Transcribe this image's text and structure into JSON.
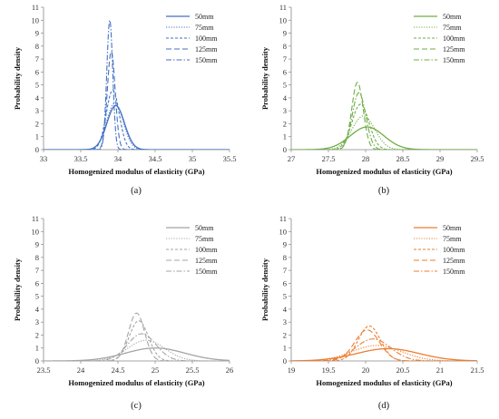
{
  "chart_data": [
    {
      "type": "line",
      "panel_label": "(a)",
      "xlabel": "Homogenized modulus of elasticity (GPa)",
      "ylabel": "Probability density",
      "xlim": [
        33,
        35.5
      ],
      "xticks": [
        33,
        33.5,
        34,
        34.5,
        35,
        35.5
      ],
      "xtick_labels": [
        "33",
        "33.5",
        "34",
        "34.5",
        "35",
        "35.5"
      ],
      "ylim": [
        0,
        11
      ],
      "yticks": [
        0,
        1,
        2,
        3,
        4,
        5,
        6,
        7,
        8,
        9,
        10,
        11
      ],
      "ytick_labels": [
        "0",
        "1",
        "2",
        "3",
        "4",
        "5",
        "6",
        "7",
        "8",
        "9",
        "10",
        "11"
      ],
      "grid": false,
      "legend_position": "top-right",
      "color": "#4472C4",
      "series": [
        {
          "name": "50mm",
          "style": "solid",
          "mean": 33.97,
          "peak": 3.4
        },
        {
          "name": "75mm",
          "style": "dotted",
          "mean": 33.96,
          "peak": 3.6
        },
        {
          "name": "100mm",
          "style": "short-dash",
          "mean": 33.93,
          "peak": 4.6
        },
        {
          "name": "125mm",
          "style": "long-dash",
          "mean": 33.91,
          "peak": 7.6
        },
        {
          "name": "150mm",
          "style": "dash-dot",
          "mean": 33.89,
          "peak": 10.0
        }
      ]
    },
    {
      "type": "line",
      "panel_label": "(b)",
      "xlabel": "Homogenized modulus of elasticity (GPa)",
      "ylabel": "Probability density",
      "xlim": [
        27,
        29.5
      ],
      "xticks": [
        27,
        27.5,
        28,
        28.5,
        29,
        29.5
      ],
      "xtick_labels": [
        "27",
        "27.5",
        "28",
        "28.5",
        "29",
        "29.5"
      ],
      "ylim": [
        0,
        11
      ],
      "yticks": [
        0,
        1,
        2,
        3,
        4,
        5,
        6,
        7,
        8,
        9,
        10,
        11
      ],
      "ytick_labels": [
        "0",
        "1",
        "2",
        "3",
        "4",
        "5",
        "6",
        "7",
        "8",
        "9",
        "10",
        "11"
      ],
      "grid": false,
      "legend_position": "top-right",
      "color": "#70AD47",
      "series": [
        {
          "name": "50mm",
          "style": "solid",
          "mean": 28.02,
          "peak": 1.75
        },
        {
          "name": "75mm",
          "style": "dotted",
          "mean": 27.97,
          "peak": 2.6
        },
        {
          "name": "100mm",
          "style": "short-dash",
          "mean": 27.93,
          "peak": 3.5
        },
        {
          "name": "125mm",
          "style": "long-dash",
          "mean": 27.89,
          "peak": 5.2
        },
        {
          "name": "150mm",
          "style": "dash-dot",
          "mean": 27.91,
          "peak": 4.4
        }
      ]
    },
    {
      "type": "line",
      "panel_label": "(c)",
      "xlabel": "Homogenized modulus of elasticity (GPa)",
      "ylabel": "Probability density",
      "xlim": [
        23.5,
        26
      ],
      "xticks": [
        23.5,
        24,
        24.5,
        25,
        25.5,
        26
      ],
      "xtick_labels": [
        "23.5",
        "24",
        "24.5",
        "25",
        "25.5",
        "26"
      ],
      "ylim": [
        0,
        11
      ],
      "yticks": [
        0,
        1,
        2,
        3,
        4,
        5,
        6,
        7,
        8,
        9,
        10,
        11
      ],
      "ytick_labels": [
        "0",
        "1",
        "2",
        "3",
        "4",
        "5",
        "6",
        "7",
        "8",
        "9",
        "10",
        "11"
      ],
      "grid": false,
      "legend_position": "top-right",
      "color": "#A5A5A5",
      "series": [
        {
          "name": "50mm",
          "style": "solid",
          "mean": 25.0,
          "peak": 1.0
        },
        {
          "name": "75mm",
          "style": "dotted",
          "mean": 24.88,
          "peak": 1.6
        },
        {
          "name": "100mm",
          "style": "short-dash",
          "mean": 24.78,
          "peak": 3.1
        },
        {
          "name": "125mm",
          "style": "long-dash",
          "mean": 24.75,
          "peak": 3.7
        },
        {
          "name": "150mm",
          "style": "dash-dot",
          "mean": 24.82,
          "peak": 2.1
        }
      ]
    },
    {
      "type": "line",
      "panel_label": "(d)",
      "xlabel": "Homogenized modulus of elasticity (GPa)",
      "ylabel": "Probability density",
      "xlim": [
        19,
        21.5
      ],
      "xticks": [
        19,
        19.5,
        20,
        20.5,
        21,
        21.5
      ],
      "xtick_labels": [
        "19",
        "19.5",
        "20",
        "20.5",
        "21",
        "21.5"
      ],
      "ylim": [
        0,
        11
      ],
      "yticks": [
        0,
        1,
        2,
        3,
        4,
        5,
        6,
        7,
        8,
        9,
        10,
        11
      ],
      "ytick_labels": [
        "0",
        "1",
        "2",
        "3",
        "4",
        "5",
        "6",
        "7",
        "8",
        "9",
        "10",
        "11"
      ],
      "grid": false,
      "legend_position": "top-right",
      "color": "#ED7D31",
      "series": [
        {
          "name": "50mm",
          "style": "solid",
          "mean": 20.3,
          "peak": 0.95
        },
        {
          "name": "75mm",
          "style": "dotted",
          "mean": 20.15,
          "peak": 1.2
        },
        {
          "name": "100mm",
          "style": "short-dash",
          "mean": 20.05,
          "peak": 2.7
        },
        {
          "name": "125mm",
          "style": "long-dash",
          "mean": 20.02,
          "peak": 2.4
        },
        {
          "name": "150mm",
          "style": "dash-dot",
          "mean": 20.1,
          "peak": 1.7
        }
      ]
    }
  ]
}
